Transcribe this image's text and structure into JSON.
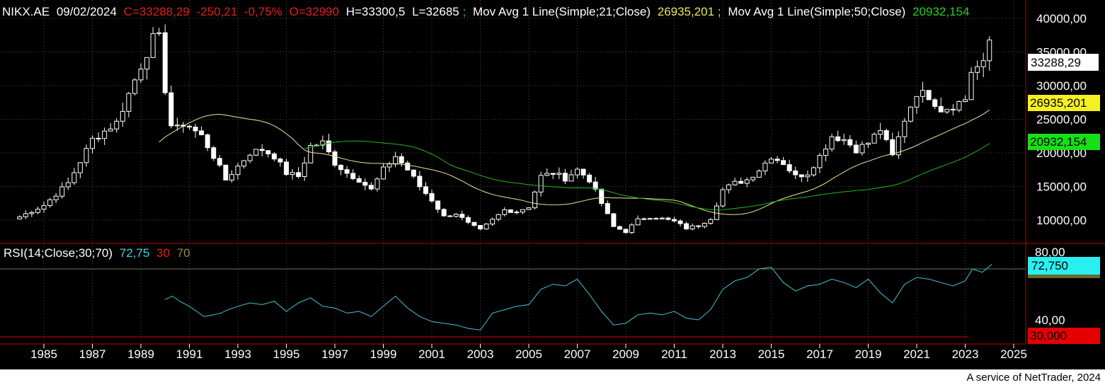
{
  "header": {
    "symbol": "NIKX.AE",
    "date": "09/02/2024",
    "close": "C=33288,29",
    "change": "-250,21",
    "change_pct": "-0,75%",
    "open": "O=32990",
    "high": "H=33300,5",
    "low": "L=32685",
    "sep1": ";",
    "ma21_label": "Mov Avg 1 Line(Simple;21;Close)",
    "ma21_value": "26935,201",
    "sep2": ";",
    "ma50_label": "Mov Avg 1 Line(Simple;50;Close)",
    "ma50_value": "20932,154"
  },
  "rsi_header": {
    "label": "RSI(14;Close;30;70)",
    "value": "72,75",
    "low": "30",
    "high": "70"
  },
  "price_axis_ticks": [
    "40000,00",
    "35000,00",
    "30000,00",
    "25000,00",
    "20000,00",
    "15000,00",
    "10000,00"
  ],
  "rsi_axis_ticks": [
    "80,00",
    "40,00"
  ],
  "year_ticks": [
    "1985",
    "1987",
    "1989",
    "1991",
    "1993",
    "1995",
    "1997",
    "1999",
    "2001",
    "2003",
    "2005",
    "2007",
    "2009",
    "2011",
    "2013",
    "2015",
    "2017",
    "2019",
    "2021",
    "2023",
    "2025"
  ],
  "badges": {
    "last_price": "33288,29",
    "ma21": "26935,201",
    "ma50": "20932,154",
    "rsi": "72,750",
    "rsi_low": "30,000"
  },
  "footer": {
    "credit": "A service of NetTrader, 2024"
  },
  "colors": {
    "background": "#000000",
    "grid": "#4a4a4a",
    "candle_up": "#ffffff",
    "candle_down": "#ffffff",
    "ma21": "#e8e89a",
    "ma50": "#1db81d",
    "rsi_line": "#45c4d8",
    "rsi_70": "#6a7a5a",
    "rsi_30": "#d80000",
    "axis_line": "#c00000",
    "header_red": "#e01e1e",
    "header_green": "#20d020",
    "header_yellow": "#e8e85a",
    "rsi_cyan": "#40d0e0",
    "rsi_olive": "#8a8a4a"
  },
  "chart_data": [
    {
      "type": "candlestick",
      "title": "NIKX.AE",
      "interval": "quarterly",
      "ylim": [
        6000,
        40000
      ],
      "xlim": [
        1983.8,
        2026.5
      ],
      "yticks": [
        10000,
        15000,
        20000,
        25000,
        30000,
        35000,
        40000
      ],
      "grid": true,
      "anchors": {
        "1984.0": 10500,
        "1985.0": 12200,
        "1986.0": 15500,
        "1987.0": 22000,
        "1988.0": 24500,
        "1989.0": 33000,
        "1989.7": 38500,
        "1990.0": 29500,
        "1990.3": 23000,
        "1990.8": 24500,
        "1991.5": 22500,
        "1992.0": 19500,
        "1992.5": 16000,
        "1993.0": 18000,
        "1993.5": 20000,
        "1994.0": 20500,
        "1994.5": 19500,
        "1995.0": 17000,
        "1995.5": 16500,
        "1996.0": 21000,
        "1996.5": 21500,
        "1997.0": 18500,
        "1997.5": 17000,
        "1998.0": 16000,
        "1998.5": 14500,
        "1999.0": 17500,
        "1999.5": 19500,
        "2000.0": 17500,
        "2000.5": 15000,
        "2001.0": 13000,
        "2001.5": 10500,
        "2002.0": 11000,
        "2002.5": 9500,
        "2003.0": 8500,
        "2003.5": 10000,
        "2004.0": 11500,
        "2004.5": 11300,
        "2005.0": 12000,
        "2005.5": 16500,
        "2006.0": 17000,
        "2006.5": 16200,
        "2007.0": 17500,
        "2007.5": 16000,
        "2008.0": 12500,
        "2008.5": 9000,
        "2009.0": 8300,
        "2009.5": 10000,
        "2010.0": 10500,
        "2010.5": 10200,
        "2011.0": 9800,
        "2011.5": 8800,
        "2012.0": 9200,
        "2012.5": 10300,
        "2013.0": 14500,
        "2013.5": 15500,
        "2014.0": 16000,
        "2014.5": 17500,
        "2015.0": 19500,
        "2015.5": 18500,
        "2016.0": 16500,
        "2016.5": 17000,
        "2017.0": 19500,
        "2017.5": 22500,
        "2018.0": 22000,
        "2018.5": 20500,
        "2019.0": 21500,
        "2019.5": 23500,
        "2020.0": 19500,
        "2020.5": 25000,
        "2021.0": 29000,
        "2021.5": 28500,
        "2022.0": 26500,
        "2022.5": 27000,
        "2023.0": 28000,
        "2023.3": 33000,
        "2023.7": 32500,
        "2024.1": 36800
      },
      "series": [
        {
          "name": "Mov Avg 1 Line(Simple;21;Close)",
          "period": 21,
          "last": 26935.201
        },
        {
          "name": "Mov Avg 1 Line(Simple;50;Close)",
          "period": 50,
          "last": 20932.154
        }
      ]
    },
    {
      "type": "line",
      "title": "RSI(14;Close;30;70)",
      "ylim": [
        18,
        88
      ],
      "yticks": [
        40,
        80
      ],
      "levels": [
        30,
        70
      ],
      "last": 72.75,
      "x": [
        1990.0,
        1990.3,
        1990.6,
        1991.0,
        1991.3,
        1991.6,
        1992.0,
        1992.3,
        1992.6,
        1993.0,
        1993.5,
        1994.0,
        1994.5,
        1995.0,
        1995.5,
        1996.0,
        1996.5,
        1997.0,
        1997.5,
        1998.0,
        1998.5,
        1999.0,
        1999.5,
        2000.0,
        2000.5,
        2001.0,
        2001.5,
        2002.0,
        2002.5,
        2003.0,
        2003.5,
        2004.0,
        2004.5,
        2005.0,
        2005.5,
        2006.0,
        2006.5,
        2007.0,
        2007.5,
        2008.0,
        2008.5,
        2009.0,
        2009.5,
        2010.0,
        2010.5,
        2011.0,
        2011.5,
        2012.0,
        2012.5,
        2013.0,
        2013.5,
        2014.0,
        2014.5,
        2015.0,
        2015.5,
        2016.0,
        2016.5,
        2017.0,
        2017.5,
        2018.0,
        2018.5,
        2019.0,
        2019.5,
        2020.0,
        2020.5,
        2021.0,
        2021.5,
        2022.0,
        2022.5,
        2023.0,
        2023.3,
        2023.7,
        2024.1
      ],
      "values": [
        52,
        54,
        51,
        48,
        45,
        42,
        43,
        44,
        46,
        48,
        50,
        49,
        51,
        45,
        50,
        53,
        48,
        47,
        44,
        45,
        42,
        48,
        54,
        47,
        42,
        39,
        38,
        37,
        35,
        34,
        44,
        46,
        48,
        49,
        58,
        61,
        60,
        64,
        55,
        45,
        37,
        38,
        43,
        44,
        43,
        45,
        41,
        40,
        46,
        58,
        63,
        65,
        70,
        71,
        62,
        57,
        60,
        61,
        64,
        62,
        59,
        64,
        56,
        50,
        61,
        65,
        64,
        62,
        60,
        63,
        70,
        68,
        72.75
      ]
    }
  ]
}
